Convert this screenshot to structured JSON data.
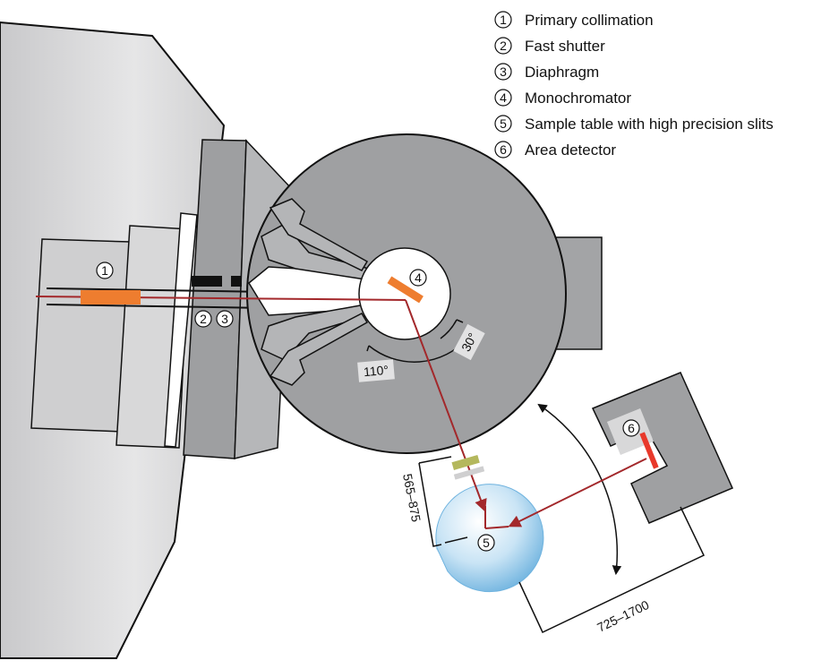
{
  "legend": [
    {
      "num": "1",
      "label": "Primary collimation"
    },
    {
      "num": "2",
      "label": "Fast shutter"
    },
    {
      "num": "3",
      "label": "Diaphragm"
    },
    {
      "num": "4",
      "label": "Monochromator"
    },
    {
      "num": "5",
      "label": "Sample table with high precision slits"
    },
    {
      "num": "6",
      "label": "Area detector"
    }
  ],
  "markers": {
    "primary_collimation": "1",
    "fast_shutter": "2",
    "diaphragm": "3",
    "monochromator": "4",
    "sample_table": "5",
    "area_detector": "6"
  },
  "angles": {
    "small": "30°",
    "large": "110°"
  },
  "distances": {
    "sample": "565–875",
    "detector": "725–1700"
  },
  "colors": {
    "housing_light": "#d4d4d4",
    "housing_mid": "#a9a9ab",
    "drum": "#9d9ea0",
    "beam": "#a3282b",
    "orange": "#ee7d2f",
    "sample_blue": "#6db3e0",
    "detector_red": "#e8392b"
  }
}
